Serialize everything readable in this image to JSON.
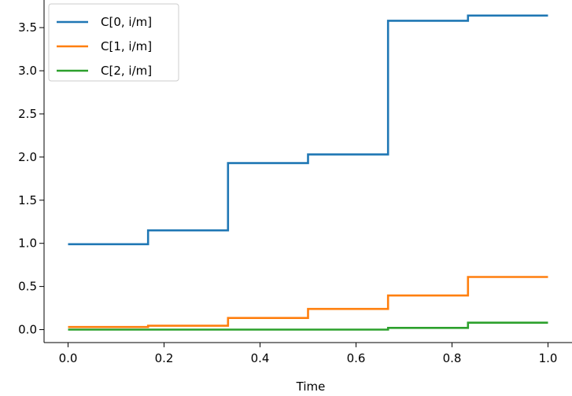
{
  "chart_data": {
    "type": "line",
    "step": true,
    "xlabel": "Time",
    "ylabel": "",
    "xlim": [
      -0.05,
      1.05
    ],
    "ylim": [
      -0.15,
      3.82
    ],
    "xticks": [
      "0.0",
      "0.2",
      "0.4",
      "0.6",
      "0.8",
      "1.0"
    ],
    "yticks": [
      "0.0",
      "0.5",
      "1.0",
      "1.5",
      "2.0",
      "2.5",
      "3.0",
      "3.5"
    ],
    "grid": false,
    "legend_position": "top-left",
    "breakpoints": [
      0,
      0.1667,
      0.3333,
      0.5,
      0.6667,
      0.8333,
      1.0
    ],
    "series": [
      {
        "name": "C[0, i/m]",
        "color": "#1f77b4",
        "values": [
          0.99,
          1.15,
          1.93,
          2.03,
          3.58,
          3.64
        ]
      },
      {
        "name": "C[1, i/m]",
        "color": "#ff7f0e",
        "values": [
          0.03,
          0.045,
          0.135,
          0.24,
          0.395,
          0.61
        ]
      },
      {
        "name": "C[2, i/m]",
        "color": "#2ca02c",
        "values": [
          0.0,
          0.0,
          0.0,
          0.0,
          0.02,
          0.08
        ]
      }
    ]
  }
}
